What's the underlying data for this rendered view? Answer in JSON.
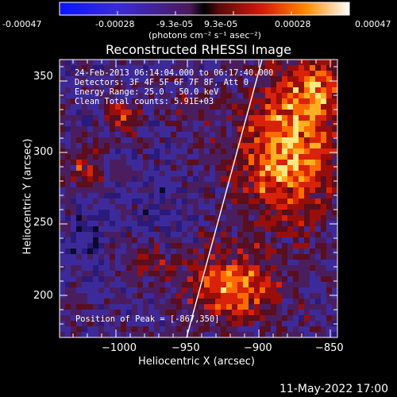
{
  "colorbar": {
    "ticks": [
      "-0.00047",
      "-0.00028",
      "-9.3e-05",
      "9.3e-05",
      "0.00028",
      "0.00047"
    ],
    "units_text": "(photons cm⁻² s⁻¹ asec⁻²)"
  },
  "plot": {
    "title": "Reconstructed RHESSI Image",
    "info_lines": [
      "24-Feb-2013 06:14:04.000 to 06:17:40.000",
      "Detectors: 3F 4F 5F 6F 7F 8F, Att 0",
      "Energy Range: 25.0 - 50.0 keV",
      "Clean    Total counts: 5.91E+03"
    ],
    "peak_text": "Position of Peak = [-867,350]",
    "x_axis": {
      "label": "Heliocentric X (arcsec)",
      "ticks": [
        "−1000",
        "−950",
        "−900",
        "−850"
      ]
    },
    "y_axis": {
      "label": "Heliocentric Y (arcsec)",
      "ticks": [
        "200",
        "250",
        "300",
        "350"
      ]
    }
  },
  "footer": {
    "timestamp": "11-May-2022 17:00"
  },
  "colors": {
    "background": "#000000",
    "limb": "#ffffff"
  }
}
